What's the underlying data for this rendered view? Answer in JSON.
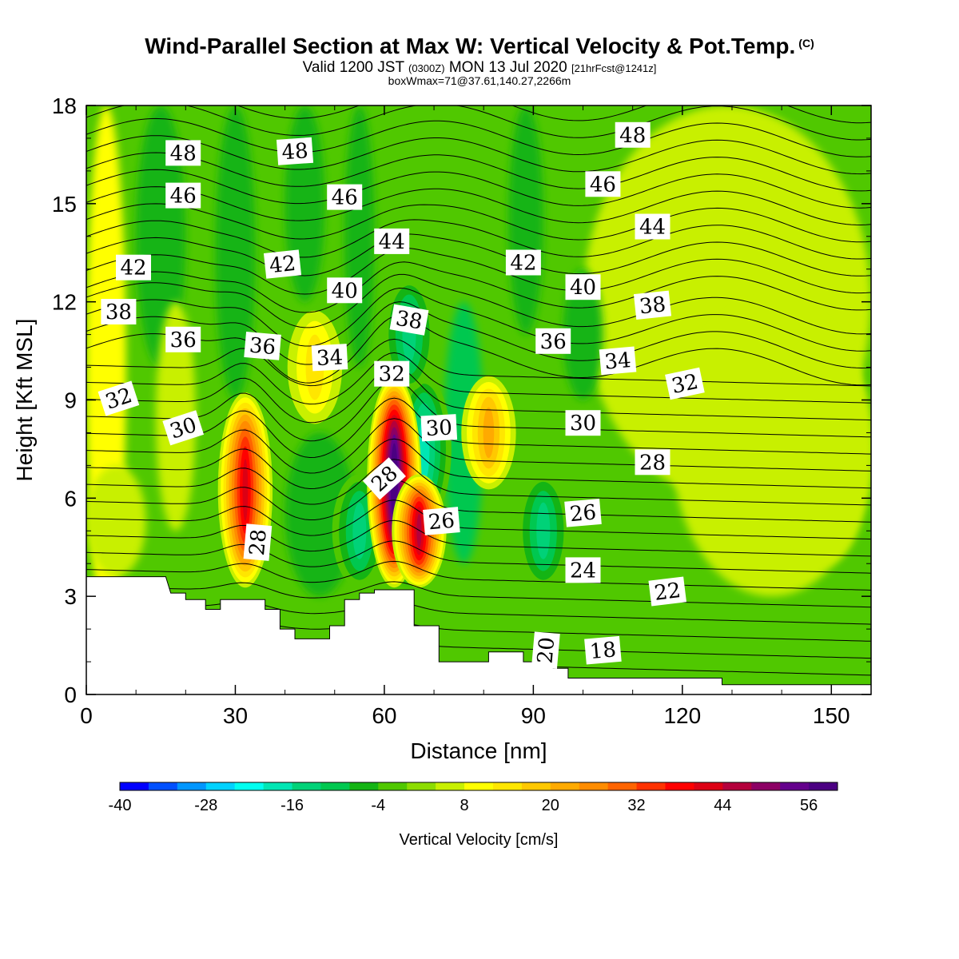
{
  "header": {
    "title_main": "Wind-Parallel Section at Max W: Vertical Velocity & Pot.Temp.",
    "title_mark": "(C)",
    "subtitle_a": "Valid 1200 JST",
    "subtitle_b": "(0300Z)",
    "subtitle_c": "MON 13 Jul 2020",
    "subtitle_d": "[21hrFcst@1241z]",
    "subtitle_line3": "boxWmax=71@37.61,140.27,2266m"
  },
  "chart_data": {
    "type": "heatmap",
    "title": "Wind-Parallel Section at Max W: Vertical Velocity & Pot.Temp.",
    "xlabel": "Distance [nm]",
    "ylabel": "Height [Kft MSL]",
    "xlim": [
      0,
      158
    ],
    "ylim": [
      0,
      18
    ],
    "x_ticks": [
      0,
      30,
      60,
      90,
      120,
      150
    ],
    "y_ticks": [
      0,
      3,
      6,
      9,
      12,
      15,
      18
    ],
    "colorbar": {
      "title": "Vertical Velocity [cm/s]",
      "min": -40,
      "max": 60,
      "step": 4,
      "tick_labels": [
        -40,
        -28,
        -16,
        -4,
        8,
        20,
        32,
        44,
        56
      ],
      "colors": [
        "#0000ff",
        "#0050ff",
        "#0096ff",
        "#00d2ff",
        "#00fff0",
        "#00e6b4",
        "#00d278",
        "#00c850",
        "#14b414",
        "#50c800",
        "#8cdc00",
        "#c8f000",
        "#ffff00",
        "#ffe600",
        "#ffc800",
        "#ffaa00",
        "#ff8c00",
        "#ff6400",
        "#ff3200",
        "#ff0000",
        "#dc0014",
        "#b4003c",
        "#8c0064",
        "#64008c",
        "#4b0082"
      ]
    },
    "updraft_cores": [
      {
        "x": 32,
        "z_low": 4,
        "z_high": 8.5,
        "peak_w": 40
      },
      {
        "x": 62,
        "z_low": 4,
        "z_high": 9.0,
        "peak_w": 60
      },
      {
        "x": 81,
        "z_low": 7,
        "z_high": 9.0,
        "peak_w": 20
      },
      {
        "x": 46,
        "z_low": 9,
        "z_high": 11,
        "peak_w": 12
      },
      {
        "x": 67,
        "z_low": 4,
        "z_high": 6,
        "peak_w": 44
      }
    ],
    "downdraft_cores": [
      {
        "x": 68,
        "z_low": 6,
        "z_high": 9,
        "peak_w": -20
      },
      {
        "x": 55,
        "z_low": 4,
        "z_high": 6,
        "peak_w": -16
      },
      {
        "x": 92,
        "z_low": 4,
        "z_high": 6,
        "peak_w": -16
      },
      {
        "x": 65,
        "z_low": 10,
        "z_high": 12,
        "peak_w": -16
      }
    ],
    "terrain_profile": [
      [
        0,
        3.6
      ],
      [
        16,
        3.6
      ],
      [
        17,
        3.1
      ],
      [
        20,
        3.1
      ],
      [
        20,
        2.9
      ],
      [
        24,
        2.9
      ],
      [
        24,
        2.6
      ],
      [
        27,
        2.6
      ],
      [
        27,
        2.9
      ],
      [
        36,
        2.9
      ],
      [
        36,
        2.6
      ],
      [
        39,
        2.6
      ],
      [
        39,
        2.0
      ],
      [
        42,
        2.0
      ],
      [
        42,
        1.7
      ],
      [
        49,
        1.7
      ],
      [
        49,
        2.1
      ],
      [
        52,
        2.1
      ],
      [
        52,
        2.9
      ],
      [
        55,
        2.9
      ],
      [
        55,
        3.1
      ],
      [
        58,
        3.1
      ],
      [
        58,
        3.2
      ],
      [
        66,
        3.2
      ],
      [
        66,
        2.1
      ],
      [
        71,
        2.1
      ],
      [
        71,
        1.0
      ],
      [
        81,
        1.0
      ],
      [
        81,
        1.3
      ],
      [
        88,
        1.3
      ],
      [
        88,
        1.0
      ],
      [
        94,
        1.0
      ],
      [
        94,
        0.8
      ],
      [
        97,
        0.8
      ],
      [
        97,
        0.5
      ],
      [
        128,
        0.5
      ],
      [
        128,
        0.3
      ],
      [
        158,
        0.3
      ]
    ],
    "theta_contour_labels": [
      {
        "text": "48",
        "x": 19.5,
        "z": 16.55,
        "rot": 0
      },
      {
        "text": "48",
        "x": 42,
        "z": 16.6,
        "rot": -4
      },
      {
        "text": "48",
        "x": 110,
        "z": 17.1,
        "rot": 0
      },
      {
        "text": "46",
        "x": 19.5,
        "z": 15.25,
        "rot": 0
      },
      {
        "text": "46",
        "x": 52,
        "z": 15.2,
        "rot": 0
      },
      {
        "text": "46",
        "x": 104,
        "z": 15.6,
        "rot": 0
      },
      {
        "text": "44",
        "x": 61.5,
        "z": 13.85,
        "rot": 0
      },
      {
        "text": "44",
        "x": 114,
        "z": 14.3,
        "rot": 0
      },
      {
        "text": "42",
        "x": 9.5,
        "z": 13.05,
        "rot": 0
      },
      {
        "text": "42",
        "x": 39.5,
        "z": 13.15,
        "rot": -6
      },
      {
        "text": "42",
        "x": 88,
        "z": 13.2,
        "rot": 0
      },
      {
        "text": "40",
        "x": 52,
        "z": 12.35,
        "rot": 0
      },
      {
        "text": "40",
        "x": 100,
        "z": 12.45,
        "rot": 0
      },
      {
        "text": "38",
        "x": 6.5,
        "z": 11.7,
        "rot": 0
      },
      {
        "text": "38",
        "x": 65,
        "z": 11.45,
        "rot": 10
      },
      {
        "text": "38",
        "x": 114,
        "z": 11.9,
        "rot": -6
      },
      {
        "text": "36",
        "x": 19.5,
        "z": 10.85,
        "rot": 0
      },
      {
        "text": "36",
        "x": 35.5,
        "z": 10.65,
        "rot": 5
      },
      {
        "text": "36",
        "x": 94,
        "z": 10.8,
        "rot": 0
      },
      {
        "text": "34",
        "x": 49,
        "z": 10.3,
        "rot": -3
      },
      {
        "text": "34",
        "x": 107,
        "z": 10.2,
        "rot": -5
      },
      {
        "text": "32",
        "x": 6.5,
        "z": 9.05,
        "rot": -18
      },
      {
        "text": "32",
        "x": 61.5,
        "z": 9.8,
        "rot": 0
      },
      {
        "text": "32",
        "x": 120.5,
        "z": 9.5,
        "rot": -12
      },
      {
        "text": "30",
        "x": 19.5,
        "z": 8.15,
        "rot": -18
      },
      {
        "text": "30",
        "x": 71,
        "z": 8.15,
        "rot": -3
      },
      {
        "text": "30",
        "x": 100,
        "z": 8.3,
        "rot": 0
      },
      {
        "text": "28",
        "x": 60,
        "z": 6.6,
        "rot": -42
      },
      {
        "text": "28",
        "x": 114,
        "z": 7.1,
        "rot": 0
      },
      {
        "text": "28",
        "x": 34.5,
        "z": 4.65,
        "rot": -85
      },
      {
        "text": "26",
        "x": 71.5,
        "z": 5.3,
        "rot": -5
      },
      {
        "text": "26",
        "x": 100,
        "z": 5.55,
        "rot": -5
      },
      {
        "text": "24",
        "x": 100,
        "z": 3.8,
        "rot": 0
      },
      {
        "text": "22",
        "x": 117,
        "z": 3.15,
        "rot": -7
      },
      {
        "text": "20",
        "x": 92.5,
        "z": 1.35,
        "rot": -85
      },
      {
        "text": "18",
        "x": 104,
        "z": 1.35,
        "rot": -5
      }
    ]
  }
}
